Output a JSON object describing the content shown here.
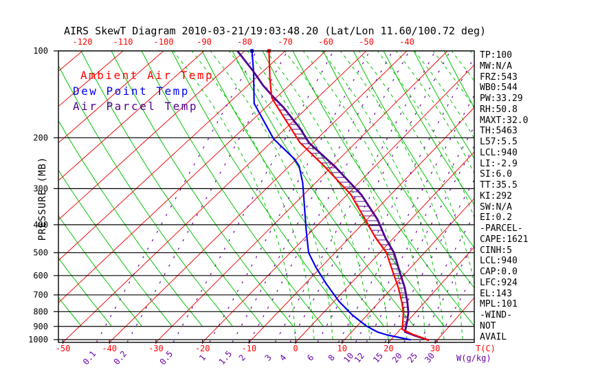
{
  "title": "AIRS SkewT Diagram 2010-03-21/19:03:48.20 (Lat/Lon 11.60/100.72 deg)",
  "legend": {
    "ambient": "Ambient Air Temp",
    "dewpoint": "Dew Point Temp",
    "parcel": "Air Parcel Temp"
  },
  "axes": {
    "pressure_label": "PRESSURE (MB)",
    "temp_unit_label": "T(C)",
    "mixing_unit_label": "W(g/kg)",
    "pressure_ticks": [
      100,
      200,
      300,
      400,
      500,
      600,
      700,
      800,
      900,
      1000
    ],
    "temp_ticks_top": [
      -120,
      -110,
      -100,
      -90,
      -80,
      -70,
      -60,
      -50,
      -40
    ],
    "temp_ticks_bottom": [
      -50,
      -40,
      -30,
      -20,
      -10,
      0,
      10,
      20,
      30
    ]
  },
  "stats_panel": {
    "lines": [
      "TP:100",
      "MW:N/A",
      "FRZ:543",
      "WB0:544",
      "PW:33.29",
      "RH:50.8",
      "MAXT:32.0",
      "TH:5463",
      "L57:5.5",
      "LCL:940",
      "LI:-2.9",
      "SI:6.0",
      "TT:35.5",
      "KI:292",
      "SW:N/A",
      "EI:0.2",
      "-PARCEL-",
      "CAPE:1621",
      "CINH:5",
      "LCL:940",
      "CAP:0.0",
      "LFC:924",
      "EL:143",
      "MPL:101",
      "-WIND-",
      "NOT",
      "AVAIL"
    ]
  },
  "colors": {
    "ambient": "#ff0000",
    "dewpoint": "#0000ee",
    "parcel": "#4e008e",
    "isotherm": "#ee1111",
    "dry_adiabat": "#00c400",
    "moist_adiabat": "#00c400",
    "mixing_ratio": "#6a00aa",
    "hatch": "#5a009d",
    "axis": "#000000",
    "tick_label_temp": "#ff0000",
    "tick_label_mixing": "#6a00aa"
  },
  "chart_data": {
    "type": "line",
    "subtype": "skew-t-log-p-sounding",
    "title": "AIRS SkewT Diagram 2010-03-21/19:03:48.20 (Lat/Lon 11.60/100.72 deg)",
    "ylabel": "PRESSURE (MB)",
    "xlabel_temp": "T(C)",
    "xlabel_mixing": "W(g/kg)",
    "pressure_range_mb": [
      100,
      1000
    ],
    "temp_labels_top_at_100mb_c": [
      -120,
      -110,
      -100,
      -90,
      -80,
      -70,
      -60,
      -50,
      -40
    ],
    "temp_labels_bottom_at_1000mb_c": [
      -50,
      -40,
      -30,
      -20,
      -10,
      0,
      10,
      20,
      30
    ],
    "grid": {
      "isotherm_step_c": 10,
      "pressure_lines_mb": [
        100,
        200,
        300,
        400,
        500,
        600,
        700,
        800,
        900,
        1000
      ]
    },
    "legend_position": "upper-left-inside",
    "mixing_ratio_lines_g_per_kg": [
      {
        "value": 0.1,
        "surface_temp_c": -42.8
      },
      {
        "value": 0.2,
        "surface_temp_c": -36.2
      },
      {
        "value": 0.5,
        "surface_temp_c": -26.3
      },
      {
        "value": 1,
        "surface_temp_c": -18.5
      },
      {
        "value": 1.5,
        "surface_temp_c": -13.6
      },
      {
        "value": 2,
        "surface_temp_c": -10.0
      },
      {
        "value": 3,
        "surface_temp_c": -4.4
      },
      {
        "value": 4,
        "surface_temp_c": -1.2
      },
      {
        "value": 6,
        "surface_temp_c": 4.7
      },
      {
        "value": 8,
        "surface_temp_c": 9.2
      },
      {
        "value": 10,
        "surface_temp_c": 12.9
      },
      {
        "value": 12,
        "surface_temp_c": 15.2
      },
      {
        "value": 15,
        "surface_temp_c": 19.2
      },
      {
        "value": 20,
        "surface_temp_c": 23.3
      },
      {
        "value": 25,
        "surface_temp_c": 26.6
      },
      {
        "value": 30,
        "surface_temp_c": 30.3
      }
    ],
    "series": [
      {
        "name": "Ambient Air Temp",
        "color_key": "ambient",
        "points_p_mb_t_c": [
          [
            100,
            -74.0
          ],
          [
            125,
            -66.3
          ],
          [
            145,
            -61.0
          ],
          [
            151,
            -59.0
          ],
          [
            208,
            -42.9
          ],
          [
            252,
            -31.3
          ],
          [
            315,
            -18.8
          ],
          [
            384,
            -10.0
          ],
          [
            445,
            -3.6
          ],
          [
            500,
            1.9
          ],
          [
            592,
            7.9
          ],
          [
            661,
            11.8
          ],
          [
            745,
            15.6
          ],
          [
            807,
            17.9
          ],
          [
            872,
            19.7
          ],
          [
            921,
            20.9
          ],
          [
            957,
            24.0
          ],
          [
            1005,
            28.8
          ]
        ]
      },
      {
        "name": "Dew Point Temp",
        "color_key": "dewpoint",
        "points_p_mb_t_c": [
          [
            100,
            -78.2
          ],
          [
            119,
            -71.9
          ],
          [
            152,
            -63.7
          ],
          [
            202,
            -50.0
          ],
          [
            237,
            -40.2
          ],
          [
            251,
            -37.4
          ],
          [
            287,
            -32.6
          ],
          [
            414,
            -21.3
          ],
          [
            500,
            -15.5
          ],
          [
            563,
            -10.6
          ],
          [
            642,
            -4.8
          ],
          [
            736,
            1.5
          ],
          [
            821,
            7.2
          ],
          [
            897,
            12.5
          ],
          [
            942,
            16.2
          ],
          [
            963,
            18.7
          ],
          [
            1002,
            24.8
          ]
        ]
      },
      {
        "name": "Air Parcel Temp",
        "color_key": "parcel",
        "points_p_mb_t_c": [
          [
            100,
            -81.8
          ],
          [
            118,
            -72.2
          ],
          [
            132,
            -66.1
          ],
          [
            145,
            -60.5
          ],
          [
            157,
            -55.6
          ],
          [
            187,
            -46.0
          ],
          [
            208,
            -40.8
          ],
          [
            252,
            -28.9
          ],
          [
            315,
            -16.4
          ],
          [
            384,
            -7.2
          ],
          [
            445,
            -1.4
          ],
          [
            500,
            3.6
          ],
          [
            592,
            9.4
          ],
          [
            661,
            13.2
          ],
          [
            745,
            16.8
          ],
          [
            807,
            19.0
          ],
          [
            872,
            20.6
          ],
          [
            940,
            22.0
          ],
          [
            965,
            24.5
          ],
          [
            1005,
            28.8
          ]
        ]
      }
    ],
    "cape_hatch_region": {
      "between": [
        "Ambient Air Temp",
        "Air Parcel Temp"
      ],
      "from_mb": 148,
      "to_mb": 930
    }
  }
}
